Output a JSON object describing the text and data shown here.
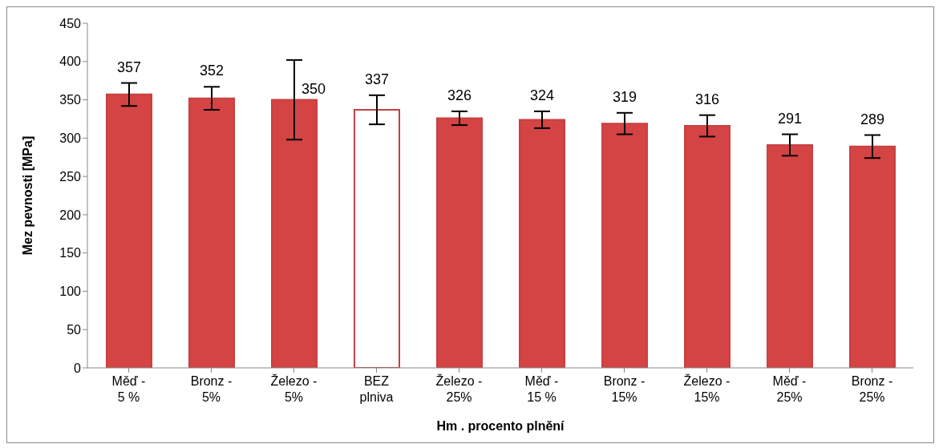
{
  "chart_data": {
    "type": "bar",
    "xlabel": "Hm . procento plnění",
    "ylabel": "Mez pevnosti [MPa]",
    "categories": [
      "Měď -\n5 %",
      "Bronz -\n5%",
      "Železo -\n5%",
      "BEZ\nplniva",
      "Železo -\n25%",
      "Měď -\n15 %",
      "Bronz -\n15%",
      "Železo -\n15%",
      "Měď -\n25%",
      "Bronz -\n25%"
    ],
    "series": [
      {
        "color": "#c84040",
        "colors": [
          "#d44444",
          "#d44444",
          "#d44444",
          "#ffffff",
          "#d44444",
          "#d44444",
          "#d44444",
          "#d44444",
          "#d44444",
          "#d44444"
        ],
        "values": [
          357,
          352,
          350,
          337,
          326,
          324,
          319,
          316,
          291,
          289
        ],
        "errors": [
          15,
          15,
          52,
          19,
          9,
          11,
          14,
          14,
          14,
          15
        ]
      }
    ],
    "ylim": [
      0,
      450
    ],
    "yticks": [
      0,
      50,
      100,
      150,
      200,
      250,
      300,
      350,
      400,
      450
    ],
    "data_labels": true
  }
}
